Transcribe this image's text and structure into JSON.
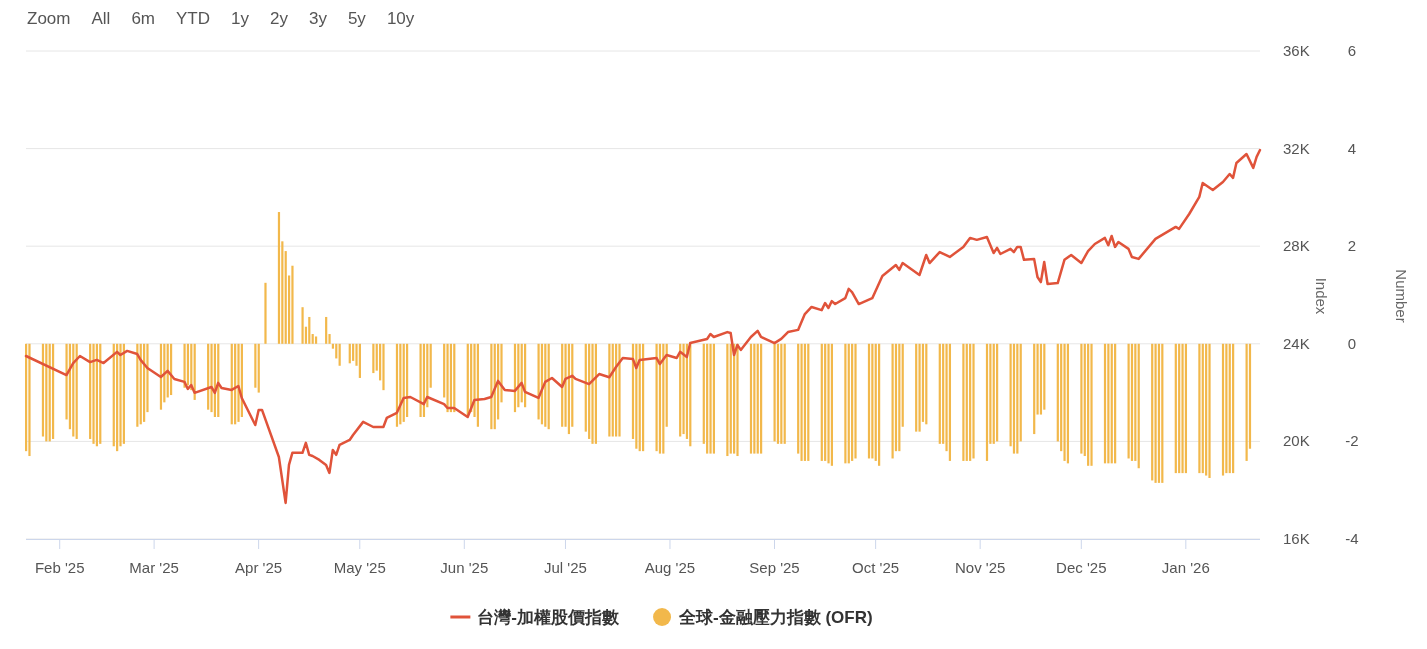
{
  "chart_data": {
    "type": "line",
    "ylabel": "Index",
    "y2label": "Number",
    "legend": "bottom",
    "grid": "y",
    "marker": "none",
    "annotations": [
      "Zoom",
      "All",
      "6m",
      "YTD",
      "1y",
      "2y",
      "3y",
      "5y",
      "10y"
    ],
    "xlim": [
      "2025-01-22",
      "2026-01-23"
    ],
    "xticks": [
      {
        "value": "2025-02-01",
        "label": "Feb '25"
      },
      {
        "value": "2025-03-01",
        "label": "Mar '25"
      },
      {
        "value": "2025-04-01",
        "label": "Apr '25"
      },
      {
        "value": "2025-05-01",
        "label": "May '25"
      },
      {
        "value": "2025-06-01",
        "label": "Jun '25"
      },
      {
        "value": "2025-07-01",
        "label": "Jul '25"
      },
      {
        "value": "2025-08-01",
        "label": "Aug '25"
      },
      {
        "value": "2025-09-01",
        "label": "Sep '25"
      },
      {
        "value": "2025-10-01",
        "label": "Oct '25"
      },
      {
        "value": "2025-11-01",
        "label": "Nov '25"
      },
      {
        "value": "2025-12-01",
        "label": "Dec '25"
      },
      {
        "value": "2026-01-01",
        "label": "Jan '26"
      }
    ],
    "ylim": [
      16000,
      36000
    ],
    "yticks": [
      {
        "value": 16000,
        "label": "16K"
      },
      {
        "value": 20000,
        "label": "20K"
      },
      {
        "value": 24000,
        "label": "24K"
      },
      {
        "value": 28000,
        "label": "28K"
      },
      {
        "value": 32000,
        "label": "32K"
      },
      {
        "value": 36000,
        "label": "36K"
      }
    ],
    "y2lim": [
      -4,
      6
    ],
    "y2ticks": [
      -4,
      -2,
      0,
      2,
      4,
      6
    ],
    "series": [
      {
        "name": "台灣-加權股價指數",
        "color": "#e0533a",
        "x": [
          "2025-01-22",
          "2025-02-03",
          "2025-02-05",
          "2025-02-07",
          "2025-02-10",
          "2025-02-12",
          "2025-02-14",
          "2025-02-18",
          "2025-02-19",
          "2025-02-21",
          "2025-02-24",
          "2025-02-25",
          "2025-02-27",
          "2025-03-03",
          "2025-03-05",
          "2025-03-07",
          "2025-03-10",
          "2025-03-11",
          "2025-03-12",
          "2025-03-13",
          "2025-03-18",
          "2025-03-19",
          "2025-03-20",
          "2025-03-21",
          "2025-03-24",
          "2025-03-26",
          "2025-03-27",
          "2025-03-31",
          "2025-04-01",
          "2025-04-02",
          "2025-04-07",
          "2025-04-09",
          "2025-04-10",
          "2025-04-11",
          "2025-04-14",
          "2025-04-15",
          "2025-04-16",
          "2025-04-17",
          "2025-04-19",
          "2025-04-21",
          "2025-04-22",
          "2025-04-23",
          "2025-04-24",
          "2025-04-25",
          "2025-04-28",
          "2025-04-29",
          "2025-05-02",
          "2025-05-05",
          "2025-05-08",
          "2025-05-09",
          "2025-05-12",
          "2025-05-14",
          "2025-05-16",
          "2025-05-20",
          "2025-05-21",
          "2025-05-26",
          "2025-05-27",
          "2025-05-29",
          "2025-06-02",
          "2025-06-04",
          "2025-06-07",
          "2025-06-09",
          "2025-06-11",
          "2025-06-13",
          "2025-06-16",
          "2025-06-18",
          "2025-06-19",
          "2025-06-23",
          "2025-06-25",
          "2025-06-27",
          "2025-06-30",
          "2025-07-01",
          "2025-07-03",
          "2025-07-04",
          "2025-07-08",
          "2025-07-11",
          "2025-07-14",
          "2025-07-16",
          "2025-07-18",
          "2025-07-21",
          "2025-07-22",
          "2025-07-23",
          "2025-07-28",
          "2025-07-29",
          "2025-07-31",
          "2025-08-03",
          "2025-08-04",
          "2025-08-06",
          "2025-08-07",
          "2025-08-12",
          "2025-08-13",
          "2025-08-14",
          "2025-08-18",
          "2025-08-19",
          "2025-08-20",
          "2025-08-21",
          "2025-08-22",
          "2025-08-25",
          "2025-08-27",
          "2025-08-28",
          "2025-09-01",
          "2025-09-03",
          "2025-09-05",
          "2025-09-08",
          "2025-09-10",
          "2025-09-12",
          "2025-09-15",
          "2025-09-16",
          "2025-09-17",
          "2025-09-18",
          "2025-09-19",
          "2025-09-22",
          "2025-09-23",
          "2025-09-24",
          "2025-09-26",
          "2025-09-30",
          "2025-10-03",
          "2025-10-07",
          "2025-10-08",
          "2025-10-09",
          "2025-10-14",
          "2025-10-16",
          "2025-10-17",
          "2025-10-20",
          "2025-10-23",
          "2025-10-27",
          "2025-10-29",
          "2025-10-31",
          "2025-11-03",
          "2025-11-05",
          "2025-11-06",
          "2025-11-07",
          "2025-11-10",
          "2025-11-11",
          "2025-11-12",
          "2025-11-13",
          "2025-11-14",
          "2025-11-17",
          "2025-11-18",
          "2025-11-19",
          "2025-11-20",
          "2025-11-21",
          "2025-11-24",
          "2025-11-26",
          "2025-11-28",
          "2025-12-01",
          "2025-12-03",
          "2025-12-05",
          "2025-12-08",
          "2025-12-09",
          "2025-12-10",
          "2025-12-11",
          "2025-12-12",
          "2025-12-15",
          "2025-12-16",
          "2025-12-18",
          "2025-12-23",
          "2025-12-29",
          "2025-12-30",
          "2026-01-02",
          "2026-01-05",
          "2026-01-06",
          "2026-01-09",
          "2026-01-12",
          "2026-01-14",
          "2026-01-15",
          "2026-01-16",
          "2026-01-19",
          "2026-01-21",
          "2026-01-22",
          "2026-01-23"
        ],
        "values": [
          23500,
          22720,
          23210,
          23500,
          23250,
          23340,
          23210,
          23670,
          23540,
          23710,
          23580,
          23340,
          23010,
          22640,
          22890,
          22560,
          22440,
          22150,
          22310,
          21990,
          22230,
          21990,
          22400,
          22190,
          22110,
          22270,
          21780,
          20670,
          21290,
          21290,
          19360,
          17480,
          19040,
          19530,
          19530,
          19940,
          19450,
          19400,
          19240,
          19030,
          18710,
          19650,
          19450,
          19860,
          20060,
          20260,
          20800,
          20590,
          20590,
          20960,
          21170,
          21780,
          21820,
          21530,
          21820,
          21530,
          21370,
          21370,
          21000,
          21700,
          21740,
          21820,
          22480,
          22110,
          22070,
          22400,
          22030,
          21780,
          22440,
          22600,
          22230,
          22560,
          22690,
          22560,
          22350,
          22760,
          22630,
          23050,
          23420,
          23380,
          23010,
          23340,
          23420,
          23170,
          23540,
          23420,
          23670,
          23460,
          24030,
          24200,
          24400,
          24280,
          24480,
          24440,
          23540,
          23950,
          23750,
          24280,
          24530,
          24280,
          24030,
          24200,
          24480,
          24570,
          25220,
          25510,
          25380,
          25670,
          25470,
          25750,
          25630,
          25870,
          26250,
          26120,
          25630,
          25870,
          26780,
          27230,
          27030,
          27310,
          26820,
          27640,
          27310,
          27760,
          27560,
          27970,
          28340,
          28260,
          28380,
          27720,
          27930,
          27680,
          27890,
          27760,
          27970,
          27970,
          27440,
          27480,
          26740,
          26530,
          27350,
          26450,
          26490,
          27440,
          27640,
          27310,
          27800,
          28090,
          28340,
          28040,
          28420,
          27970,
          28170,
          27890,
          27560,
          27480,
          28300,
          28790,
          28710,
          29320,
          30020,
          30590,
          30300,
          30630,
          30960,
          30800,
          31410,
          31780,
          31210,
          31660,
          31940
        ]
      },
      {
        "name": "全球-金融壓力指數 (OFR)",
        "type": "bar",
        "axis": "y2",
        "color": "#f2b84b",
        "x": [
          "2025-01-22",
          "2025-01-23",
          "2025-01-27",
          "2025-01-28",
          "2025-01-29",
          "2025-01-30",
          "2025-02-03",
          "2025-02-04",
          "2025-02-05",
          "2025-02-06",
          "2025-02-10",
          "2025-02-11",
          "2025-02-12",
          "2025-02-13",
          "2025-02-17",
          "2025-02-18",
          "2025-02-19",
          "2025-02-20",
          "2025-02-24",
          "2025-02-25",
          "2025-02-26",
          "2025-02-27",
          "2025-03-03",
          "2025-03-04",
          "2025-03-05",
          "2025-03-06",
          "2025-03-10",
          "2025-03-11",
          "2025-03-12",
          "2025-03-13",
          "2025-03-17",
          "2025-03-18",
          "2025-03-19",
          "2025-03-20",
          "2025-03-24",
          "2025-03-25",
          "2025-03-26",
          "2025-03-27",
          "2025-03-31",
          "2025-04-01",
          "2025-04-03",
          "2025-04-07",
          "2025-04-08",
          "2025-04-09",
          "2025-04-10",
          "2025-04-11",
          "2025-04-14",
          "2025-04-15",
          "2025-04-16",
          "2025-04-17",
          "2025-04-18",
          "2025-04-21",
          "2025-04-22",
          "2025-04-23",
          "2025-04-24",
          "2025-04-25",
          "2025-04-28",
          "2025-04-29",
          "2025-04-30",
          "2025-05-01",
          "2025-05-05",
          "2025-05-06",
          "2025-05-07",
          "2025-05-08",
          "2025-05-12",
          "2025-05-13",
          "2025-05-14",
          "2025-05-15",
          "2025-05-19",
          "2025-05-20",
          "2025-05-21",
          "2025-05-22",
          "2025-05-26",
          "2025-05-27",
          "2025-05-28",
          "2025-05-29",
          "2025-06-02",
          "2025-06-03",
          "2025-06-04",
          "2025-06-05",
          "2025-06-09",
          "2025-06-10",
          "2025-06-11",
          "2025-06-12",
          "2025-06-16",
          "2025-06-17",
          "2025-06-18",
          "2025-06-19",
          "2025-06-23",
          "2025-06-24",
          "2025-06-25",
          "2025-06-26",
          "2025-06-30",
          "2025-07-01",
          "2025-07-02",
          "2025-07-03",
          "2025-07-07",
          "2025-07-08",
          "2025-07-09",
          "2025-07-10",
          "2025-07-14",
          "2025-07-15",
          "2025-07-16",
          "2025-07-17",
          "2025-07-21",
          "2025-07-22",
          "2025-07-23",
          "2025-07-24",
          "2025-07-28",
          "2025-07-29",
          "2025-07-30",
          "2025-07-31",
          "2025-08-04",
          "2025-08-05",
          "2025-08-06",
          "2025-08-07",
          "2025-08-11",
          "2025-08-12",
          "2025-08-13",
          "2025-08-14",
          "2025-08-18",
          "2025-08-19",
          "2025-08-20",
          "2025-08-21",
          "2025-08-25",
          "2025-08-26",
          "2025-08-27",
          "2025-08-28",
          "2025-09-01",
          "2025-09-02",
          "2025-09-03",
          "2025-09-04",
          "2025-09-08",
          "2025-09-09",
          "2025-09-10",
          "2025-09-11",
          "2025-09-15",
          "2025-09-16",
          "2025-09-17",
          "2025-09-18",
          "2025-09-22",
          "2025-09-23",
          "2025-09-24",
          "2025-09-25",
          "2025-09-29",
          "2025-09-30",
          "2025-10-01",
          "2025-10-02",
          "2025-10-06",
          "2025-10-07",
          "2025-10-08",
          "2025-10-09",
          "2025-10-13",
          "2025-10-14",
          "2025-10-15",
          "2025-10-16",
          "2025-10-20",
          "2025-10-21",
          "2025-10-22",
          "2025-10-23",
          "2025-10-27",
          "2025-10-28",
          "2025-10-29",
          "2025-10-30",
          "2025-11-03",
          "2025-11-04",
          "2025-11-05",
          "2025-11-06",
          "2025-11-10",
          "2025-11-11",
          "2025-11-12",
          "2025-11-13",
          "2025-11-17",
          "2025-11-18",
          "2025-11-19",
          "2025-11-20",
          "2025-11-24",
          "2025-11-25",
          "2025-11-26",
          "2025-11-27",
          "2025-12-01",
          "2025-12-02",
          "2025-12-03",
          "2025-12-04",
          "2025-12-08",
          "2025-12-09",
          "2025-12-10",
          "2025-12-11",
          "2025-12-15",
          "2025-12-16",
          "2025-12-17",
          "2025-12-18",
          "2025-12-22",
          "2025-12-23",
          "2025-12-24",
          "2025-12-25",
          "2025-12-29",
          "2025-12-30",
          "2025-12-31",
          "2026-01-01",
          "2026-01-05",
          "2026-01-06",
          "2026-01-07",
          "2026-01-08",
          "2026-01-12",
          "2026-01-13",
          "2026-01-14",
          "2026-01-15",
          "2026-01-19",
          "2026-01-20"
        ],
        "values": [
          -2.2,
          -2.3,
          -1.9,
          -2.0,
          -2.0,
          -1.95,
          -1.55,
          -1.75,
          -1.9,
          -1.95,
          -1.95,
          -2.05,
          -2.1,
          -2.05,
          -2.1,
          -2.2,
          -2.1,
          -2.05,
          -1.7,
          -1.65,
          -1.6,
          -1.4,
          -1.35,
          -1.2,
          -1.1,
          -1.05,
          -0.9,
          -0.85,
          -0.95,
          -1.15,
          -1.35,
          -1.4,
          -1.5,
          -1.5,
          -1.65,
          -1.65,
          -1.6,
          -1.5,
          -0.9,
          -1.0,
          1.25,
          2.7,
          2.1,
          1.9,
          1.4,
          1.6,
          0.75,
          0.35,
          0.55,
          0.2,
          0.15,
          0.55,
          0.2,
          -0.1,
          -0.3,
          -0.45,
          -0.4,
          -0.35,
          -0.45,
          -0.7,
          -0.6,
          -0.55,
          -0.75,
          -0.95,
          -1.7,
          -1.65,
          -1.6,
          -1.5,
          -1.5,
          -1.5,
          -1.3,
          -0.9,
          -1.1,
          -1.4,
          -1.4,
          -1.4,
          -1.5,
          -1.4,
          -1.5,
          -1.7,
          -1.75,
          -1.75,
          -1.55,
          -1.2,
          -1.4,
          -1.3,
          -1.2,
          -1.3,
          -1.55,
          -1.65,
          -1.7,
          -1.75,
          -1.7,
          -1.7,
          -1.85,
          -1.7,
          -1.8,
          -1.95,
          -2.05,
          -2.05,
          -1.9,
          -1.9,
          -1.9,
          -1.9,
          -1.95,
          -2.15,
          -2.2,
          -2.2,
          -2.2,
          -2.25,
          -2.25,
          -1.7,
          -1.9,
          -1.85,
          -1.95,
          -2.1,
          -2.05,
          -2.25,
          -2.25,
          -2.25,
          -2.3,
          -2.25,
          -2.25,
          -2.3,
          -2.25,
          -2.25,
          -2.25,
          -2.25,
          -2.0,
          -2.05,
          -2.05,
          -2.05,
          -2.25,
          -2.4,
          -2.4,
          -2.4,
          -2.4,
          -2.4,
          -2.45,
          -2.5,
          -2.45,
          -2.45,
          -2.4,
          -2.35,
          -2.35,
          -2.35,
          -2.4,
          -2.5,
          -2.35,
          -2.2,
          -2.2,
          -1.7,
          -1.8,
          -1.8,
          -1.6,
          -1.65,
          -2.05,
          -2.05,
          -2.2,
          -2.4,
          -2.4,
          -2.4,
          -2.4,
          -2.35,
          -2.4,
          -2.05,
          -2.05,
          -2.0,
          -2.1,
          -2.25,
          -2.25,
          -2.0,
          -1.85,
          -1.45,
          -1.45,
          -1.35,
          -2.0,
          -2.2,
          -2.4,
          -2.45,
          -2.25,
          -2.3,
          -2.5,
          -2.5,
          -2.45,
          -2.45,
          -2.45,
          -2.45,
          -2.35,
          -2.4,
          -2.4,
          -2.55,
          -2.8,
          -2.85,
          -2.85,
          -2.85,
          -2.65,
          -2.65,
          -2.65,
          -2.65,
          -2.65,
          -2.65,
          -2.7,
          -2.75,
          -2.7,
          -2.65,
          -2.65,
          -2.65,
          -2.4,
          -2.15
        ]
      }
    ]
  }
}
